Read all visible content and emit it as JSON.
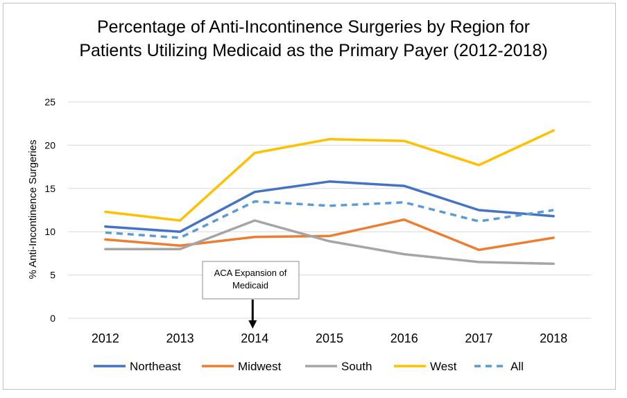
{
  "chart_data": {
    "type": "line",
    "title_line1": "Percentage of Anti-Incontinence Surgeries by Region for",
    "title_line2": "Patients Utilizing Medicaid as the Primary Payer (2012-2018)",
    "xlabel": "",
    "ylabel": "% Anti-Incontinence Surgeries",
    "categories": [
      "2012",
      "2013",
      "2014",
      "2015",
      "2016",
      "2017",
      "2018"
    ],
    "ylim": [
      0,
      25
    ],
    "yticks": [
      0,
      5,
      10,
      15,
      20,
      25
    ],
    "grid": true,
    "legend_position": "bottom",
    "series": [
      {
        "name": "Northeast",
        "color": "#4472C4",
        "dashed": false,
        "values": [
          10.6,
          10.0,
          14.6,
          15.8,
          15.3,
          12.5,
          11.8
        ]
      },
      {
        "name": "Midwest",
        "color": "#ED7D31",
        "dashed": false,
        "values": [
          9.1,
          8.4,
          9.4,
          9.5,
          11.4,
          7.9,
          9.3
        ]
      },
      {
        "name": "South",
        "color": "#A5A5A5",
        "dashed": false,
        "values": [
          8.0,
          8.0,
          11.3,
          8.9,
          7.4,
          6.5,
          6.3
        ]
      },
      {
        "name": "West",
        "color": "#FFC000",
        "dashed": false,
        "values": [
          12.3,
          11.3,
          19.1,
          20.7,
          20.5,
          17.7,
          21.7
        ]
      },
      {
        "name": "All",
        "color": "#5B9BD5",
        "dashed": true,
        "values": [
          9.9,
          9.3,
          13.5,
          13.0,
          13.4,
          11.2,
          12.5
        ]
      }
    ],
    "annotation": {
      "text_line1": "ACA Expansion of",
      "text_line2": "Medicaid",
      "category": "2014"
    }
  }
}
